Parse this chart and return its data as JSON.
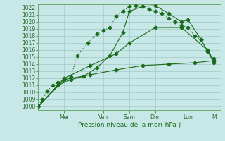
{
  "xlabel": "Pression niveau de la mer( hPa )",
  "background_color": "#c8e8e8",
  "line_color": "#1a6b1a",
  "ylim": [
    1007.5,
    1022.5
  ],
  "yticks": [
    1008,
    1009,
    1010,
    1011,
    1012,
    1013,
    1014,
    1015,
    1016,
    1017,
    1018,
    1019,
    1020,
    1021,
    1022
  ],
  "xlim": [
    0,
    14
  ],
  "x_tick_positions": [
    2.0,
    5.0,
    7.0,
    9.0,
    11.5,
    13.5
  ],
  "x_tick_labels": [
    "Mer",
    "Ven",
    "Sam",
    "Dim",
    "Lun",
    "M"
  ],
  "series": [
    {
      "x": [
        0,
        0.3,
        0.7,
        1.1,
        1.5,
        2.0,
        2.5,
        3.0,
        3.8,
        4.5,
        5.0,
        5.5,
        6.0,
        6.5,
        7.0,
        7.5,
        8.0,
        8.5,
        9.0,
        9.5,
        10.0,
        10.5,
        11.0,
        11.5,
        12.0,
        12.5,
        13.0,
        13.5
      ],
      "y": [
        1008.0,
        1009.0,
        1010.2,
        1011.0,
        1011.4,
        1011.8,
        1012.2,
        1015.2,
        1017.0,
        1018.3,
        1018.8,
        1019.2,
        1020.8,
        1021.5,
        1022.2,
        1022.3,
        1022.2,
        1021.8,
        1021.5,
        1021.2,
        1020.5,
        1020.0,
        1019.5,
        1019.2,
        1018.0,
        1017.5,
        1015.8,
        1014.8
      ],
      "marker": "D",
      "markersize": 2.5,
      "linewidth": 0.8,
      "linestyle": ":"
    },
    {
      "x": [
        0,
        1.5,
        2.5,
        3.5,
        4.5,
        5.5,
        6.5,
        7.0,
        8.0,
        9.0,
        10.0,
        11.0,
        11.5,
        12.5,
        13.5
      ],
      "y": [
        1008.0,
        1011.0,
        1011.8,
        1012.3,
        1013.5,
        1015.2,
        1018.5,
        1021.5,
        1022.2,
        1022.3,
        1021.2,
        1020.0,
        1020.3,
        1017.5,
        1014.2
      ],
      "marker": "D",
      "markersize": 2.5,
      "linewidth": 0.8,
      "linestyle": "-"
    },
    {
      "x": [
        0,
        2.0,
        4.0,
        6.0,
        7.0,
        9.0,
        11.0,
        13.0,
        13.5
      ],
      "y": [
        1008.0,
        1012.0,
        1013.8,
        1015.5,
        1017.0,
        1019.2,
        1019.2,
        1016.0,
        1014.5
      ],
      "marker": "D",
      "markersize": 2.5,
      "linewidth": 0.8,
      "linestyle": "-"
    },
    {
      "x": [
        0,
        2.0,
        4.0,
        6.0,
        8.0,
        10.0,
        12.0,
        13.5
      ],
      "y": [
        1008.0,
        1011.8,
        1012.5,
        1013.2,
        1013.8,
        1014.0,
        1014.2,
        1014.5
      ],
      "marker": "D",
      "markersize": 2.5,
      "linewidth": 0.8,
      "linestyle": "-"
    }
  ]
}
